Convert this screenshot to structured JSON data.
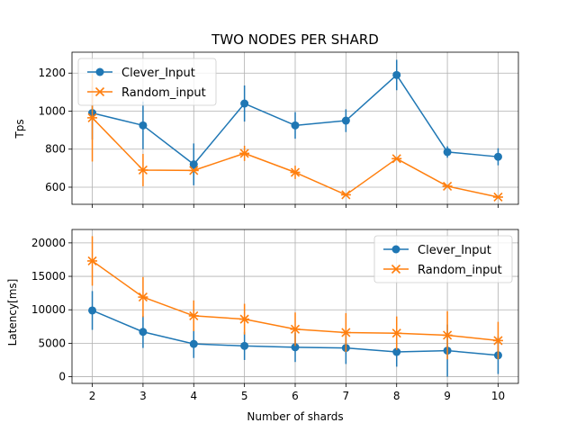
{
  "chart_data": [
    {
      "type": "line",
      "title": "TWO NODES PER SHARD",
      "xlabel": "",
      "ylabel": "Tps",
      "x": [
        2,
        3,
        4,
        5,
        6,
        7,
        8,
        9,
        10
      ],
      "xlim": [
        1.6,
        10.4
      ],
      "ylim": [
        510,
        1310
      ],
      "yticks": [
        600,
        800,
        1000,
        1200
      ],
      "grid": true,
      "legend_position": "top-left",
      "series": [
        {
          "name": "Clever_Input",
          "marker": "circle",
          "color": "#1f77b4",
          "values": [
            990,
            925,
            720,
            1040,
            925,
            950,
            1190,
            785,
            760
          ],
          "errors": [
            140,
            125,
            110,
            95,
            70,
            60,
            80,
            30,
            45
          ]
        },
        {
          "name": "Random_input",
          "marker": "x",
          "color": "#ff7f0e",
          "values": [
            965,
            690,
            688,
            778,
            678,
            560,
            750,
            605,
            548
          ],
          "errors": [
            230,
            85,
            0,
            40,
            35,
            0,
            0,
            0,
            0
          ]
        }
      ]
    },
    {
      "type": "line",
      "title": "",
      "xlabel": "Number of shards",
      "ylabel": "Latency[ms]",
      "x": [
        2,
        3,
        4,
        5,
        6,
        7,
        8,
        9,
        10
      ],
      "xlim": [
        1.6,
        10.4
      ],
      "ylim": [
        -1000,
        22000
      ],
      "yticks": [
        0,
        5000,
        10000,
        15000,
        20000
      ],
      "xticks": [
        2,
        3,
        4,
        5,
        6,
        7,
        8,
        9,
        10
      ],
      "grid": true,
      "legend_position": "top-right",
      "series": [
        {
          "name": "Clever_Input",
          "marker": "circle",
          "color": "#1f77b4",
          "values": [
            9900,
            6700,
            4900,
            4600,
            4400,
            4300,
            3700,
            3900,
            3200
          ],
          "errors": [
            2900,
            2400,
            2100,
            2100,
            2200,
            2400,
            2200,
            3900,
            2800
          ]
        },
        {
          "name": "Random_input",
          "marker": "x",
          "color": "#ff7f0e",
          "values": [
            17300,
            11900,
            9100,
            8600,
            7100,
            6600,
            6500,
            6200,
            5400
          ],
          "errors": [
            3700,
            3000,
            2300,
            2300,
            2500,
            2900,
            2500,
            3600,
            2800
          ]
        }
      ]
    }
  ]
}
